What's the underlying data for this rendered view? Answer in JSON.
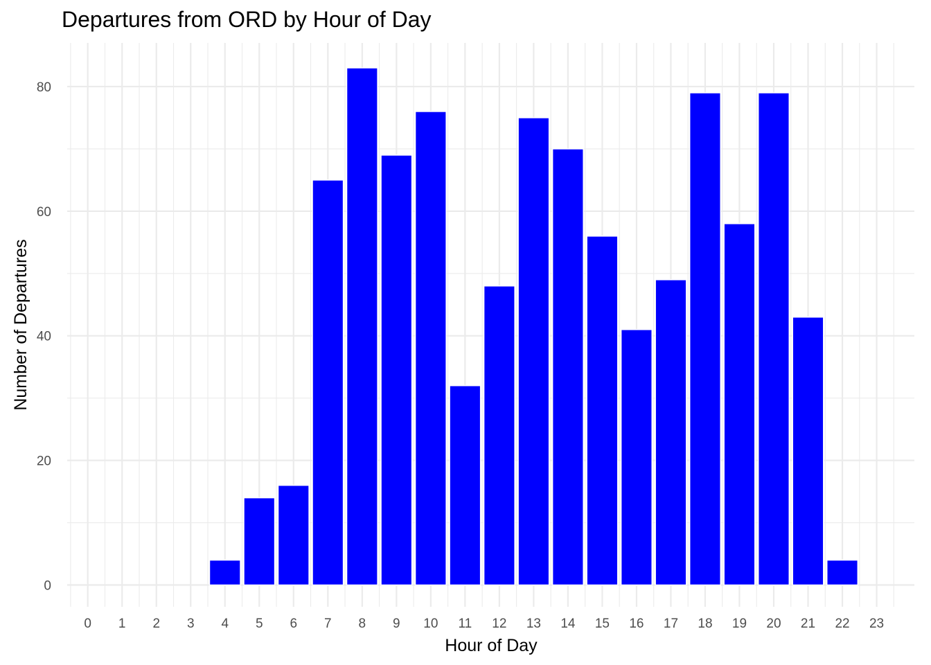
{
  "chart_data": {
    "type": "bar",
    "title": "Departures from ORD by Hour of Day",
    "xlabel": "Hour of Day",
    "ylabel": "Number of Departures",
    "categories": [
      "0",
      "1",
      "2",
      "3",
      "4",
      "5",
      "6",
      "7",
      "8",
      "9",
      "10",
      "11",
      "12",
      "13",
      "14",
      "15",
      "16",
      "17",
      "18",
      "19",
      "20",
      "21",
      "22",
      "23"
    ],
    "values": [
      0,
      0,
      0,
      0,
      4,
      14,
      16,
      65,
      83,
      69,
      76,
      32,
      48,
      75,
      70,
      56,
      41,
      49,
      79,
      58,
      79,
      43,
      4,
      0
    ],
    "y_ticks": [
      "0",
      "20",
      "40",
      "60",
      "80"
    ],
    "ylim": [
      -3.5,
      87
    ],
    "grid": true,
    "legend": "none",
    "bar_color": "#0000FF",
    "bar_outline": "#FFFFFF"
  }
}
